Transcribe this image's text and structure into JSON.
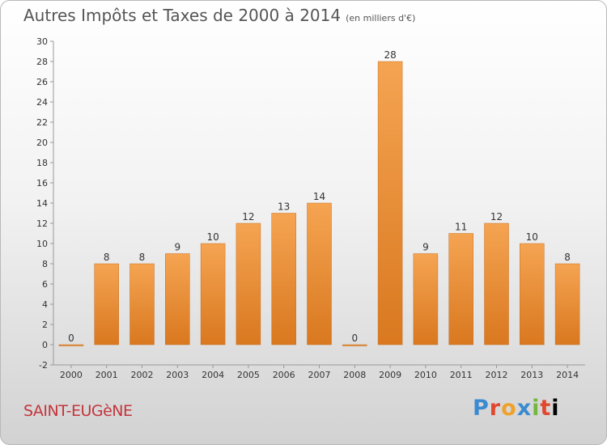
{
  "title": "Autres Impôts et Taxes de 2000 à 2014",
  "unit_note": "(en milliers d'€)",
  "location": "SAINT-EUGèNE",
  "logo_letters": [
    "P",
    "r",
    "o",
    "x",
    "i",
    "t",
    "i"
  ],
  "colors": {
    "bar_top": "#f5a452",
    "bar_bottom": "#d9781f",
    "bar_stroke": "#c86f1f",
    "title": "#555555",
    "location": "#c4343c"
  },
  "chart_data": {
    "type": "bar",
    "categories": [
      "2000",
      "2001",
      "2002",
      "2003",
      "2004",
      "2005",
      "2006",
      "2007",
      "2008",
      "2009",
      "2010",
      "2011",
      "2012",
      "2013",
      "2014"
    ],
    "values": [
      0,
      8,
      8,
      9,
      10,
      12,
      13,
      14,
      0,
      28,
      9,
      11,
      12,
      10,
      8
    ],
    "ylim": [
      -2,
      30
    ],
    "yticks": [
      -2,
      0,
      2,
      4,
      6,
      8,
      10,
      12,
      14,
      16,
      18,
      20,
      22,
      24,
      26,
      28,
      30
    ],
    "grid": false
  }
}
